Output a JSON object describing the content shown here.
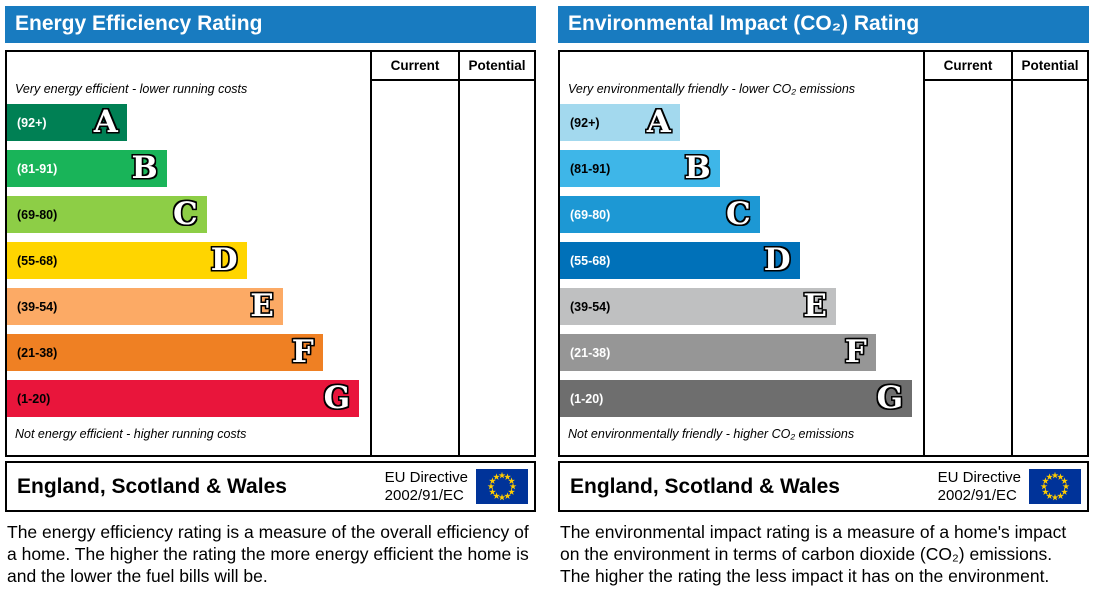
{
  "colors": {
    "header_blue": "#187bc0",
    "eu_flag_blue": "#003399",
    "eu_star_yellow": "#ffcc00",
    "border_black": "#000000"
  },
  "chart_data": [
    {
      "type": "bar",
      "title": "Energy Efficiency Rating",
      "columns": [
        "Current",
        "Potential"
      ],
      "top_note": "Very energy efficient - lower running costs",
      "bottom_note": "Not energy efficient - higher running costs",
      "bands": [
        {
          "letter": "A",
          "range_label": "(92+)",
          "min": 92,
          "max": 100,
          "color": "#008054",
          "label_color": "#ffffff",
          "width_pct": 33
        },
        {
          "letter": "B",
          "range_label": "(81-91)",
          "min": 81,
          "max": 91,
          "color": "#19b459",
          "label_color": "#ffffff",
          "width_pct": 44
        },
        {
          "letter": "C",
          "range_label": "(69-80)",
          "min": 69,
          "max": 80,
          "color": "#8dce46",
          "label_color": "#000000",
          "width_pct": 55
        },
        {
          "letter": "D",
          "range_label": "(55-68)",
          "min": 55,
          "max": 68,
          "color": "#ffd500",
          "label_color": "#000000",
          "width_pct": 66
        },
        {
          "letter": "E",
          "range_label": "(39-54)",
          "min": 39,
          "max": 54,
          "color": "#fcaa65",
          "label_color": "#000000",
          "width_pct": 76
        },
        {
          "letter": "F",
          "range_label": "(21-38)",
          "min": 21,
          "max": 38,
          "color": "#ef8023",
          "label_color": "#000000",
          "width_pct": 87
        },
        {
          "letter": "G",
          "range_label": "(1-20)",
          "min": 1,
          "max": 20,
          "color": "#e9153b",
          "label_color": "#000000",
          "width_pct": 97
        }
      ],
      "footer": {
        "region": "England, Scotland & Wales",
        "directive": [
          "EU Directive",
          "2002/91/EC"
        ],
        "flag_icon": "eu-flag-icon"
      },
      "description": "The energy efficiency rating is a measure of the overall efficiency of a home. The higher the rating the more energy efficient the home is and the lower the fuel bills will be."
    },
    {
      "type": "bar",
      "title": "Environmental Impact (CO₂) Rating",
      "columns": [
        "Current",
        "Potential"
      ],
      "top_note": "Very environmentally friendly - lower CO₂ emissions",
      "bottom_note": "Not environmentally friendly - higher CO₂ emissions",
      "bands": [
        {
          "letter": "A",
          "range_label": "(92+)",
          "min": 92,
          "max": 100,
          "color": "#a3d9ee",
          "label_color": "#000000",
          "width_pct": 33
        },
        {
          "letter": "B",
          "range_label": "(81-91)",
          "min": 81,
          "max": 91,
          "color": "#3eb6e8",
          "label_color": "#000000",
          "width_pct": 44
        },
        {
          "letter": "C",
          "range_label": "(69-80)",
          "min": 69,
          "max": 80,
          "color": "#1d98d4",
          "label_color": "#ffffff",
          "width_pct": 55
        },
        {
          "letter": "D",
          "range_label": "(55-68)",
          "min": 55,
          "max": 68,
          "color": "#0071b9",
          "label_color": "#ffffff",
          "width_pct": 66
        },
        {
          "letter": "E",
          "range_label": "(39-54)",
          "min": 39,
          "max": 54,
          "color": "#bfc0c1",
          "label_color": "#000000",
          "width_pct": 76
        },
        {
          "letter": "F",
          "range_label": "(21-38)",
          "min": 21,
          "max": 38,
          "color": "#969696",
          "label_color": "#ffffff",
          "width_pct": 87
        },
        {
          "letter": "G",
          "range_label": "(1-20)",
          "min": 1,
          "max": 20,
          "color": "#6e6e6e",
          "label_color": "#ffffff",
          "width_pct": 97
        }
      ],
      "footer": {
        "region": "England, Scotland & Wales",
        "directive": [
          "EU Directive",
          "2002/91/EC"
        ],
        "flag_icon": "eu-flag-icon"
      },
      "description": "The environmental impact rating is a measure of a home's impact on the environment in terms of carbon dioxide (CO₂) emissions. The higher the rating the less impact it has on the environment."
    }
  ]
}
